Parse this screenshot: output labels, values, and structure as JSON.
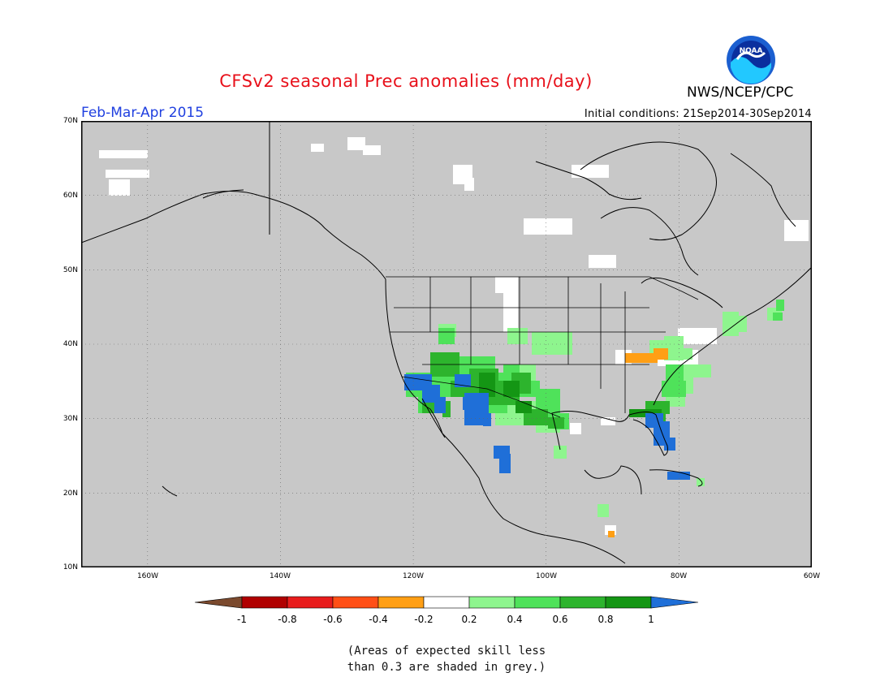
{
  "header": {
    "title": "CFSv2 seasonal Prec anomalies (mm/day)",
    "agency": "NWS/NCEP/CPC",
    "logo_text": "NOAA",
    "season": "Feb-Mar-Apr 2015",
    "initial_conditions": "Initial conditions: 21Sep2014-30Sep2014"
  },
  "map": {
    "projection": "lat-lon",
    "lat_range": [
      10,
      70
    ],
    "lon_range": [
      -170,
      -60
    ],
    "lat_ticks": [
      "70N",
      "60N",
      "50N",
      "40N",
      "30N",
      "20N",
      "10N"
    ],
    "lon_ticks": [
      "160W",
      "140W",
      "120W",
      "100W",
      "80W",
      "60W"
    ],
    "grid": true,
    "background_color": "#c8c8c8"
  },
  "legend": {
    "tick_labels": [
      "-1",
      "-0.8",
      "-0.6",
      "-0.4",
      "-0.2",
      "0.2",
      "0.4",
      "0.6",
      "0.8",
      "1"
    ],
    "colors": {
      "below_min": "#7b4a2e",
      "bins": [
        "#b00000",
        "#e81c1c",
        "#ff4f16",
        "#ff9f15",
        "#ffffff",
        "#8ef58e",
        "#4fe25a",
        "#2db42d",
        "#149614"
      ],
      "above_max": "#1f6fd8"
    }
  },
  "footnote": {
    "line1": "(Areas of expected skill less",
    "line2": "than 0.3 are shaded in grey.)"
  }
}
